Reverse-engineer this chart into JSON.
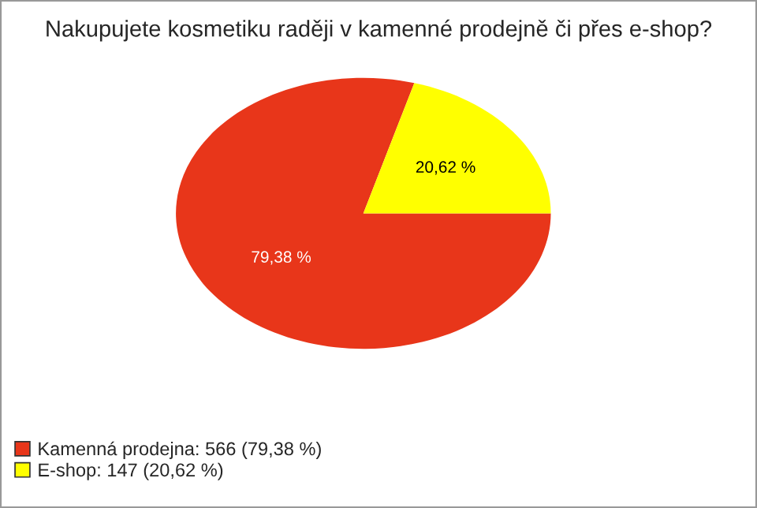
{
  "chart_data": {
    "type": "pie",
    "title": "Nakupujete kosmetiku raději v kamenné prodejně či přes e-shop?",
    "categories": [
      "Kamenná prodejna: 566 (79,38 %)",
      "E-shop: 147 (20,62 %)"
    ],
    "values": [
      79.38,
      20.62
    ],
    "colors": [
      "#e8361a",
      "#ffff00"
    ],
    "value_labels": [
      "79,38 %",
      "20,62 %"
    ],
    "legend": "bottom left"
  }
}
